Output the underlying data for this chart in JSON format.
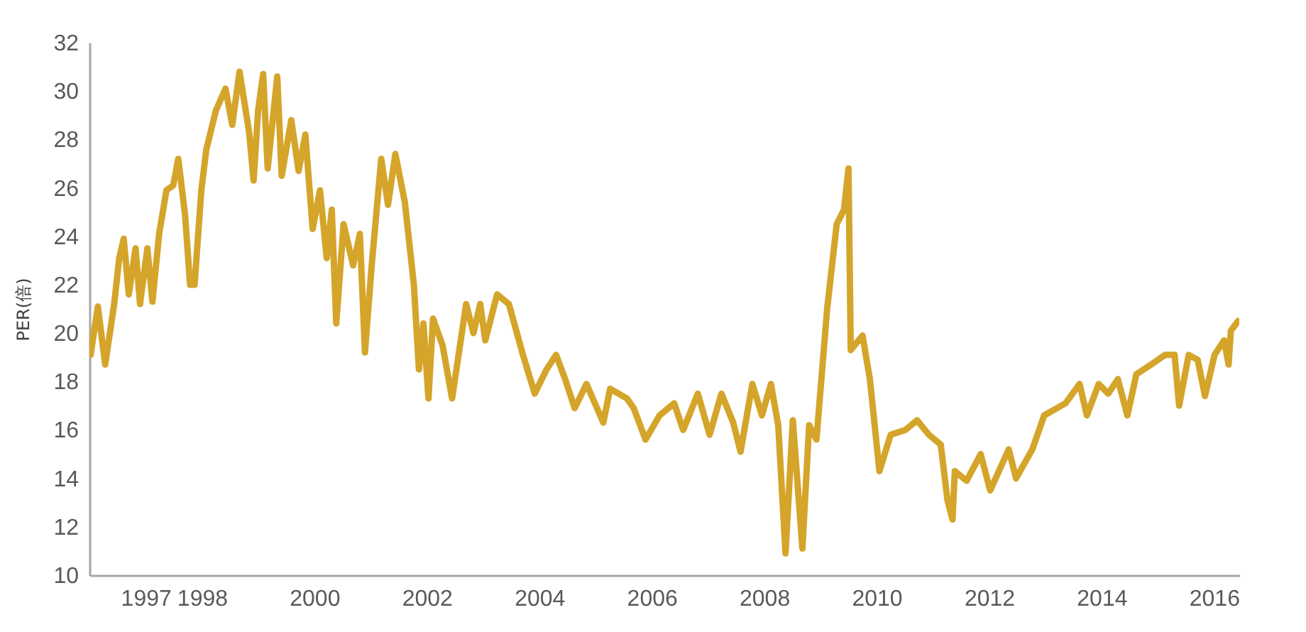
{
  "chart_data": {
    "type": "line",
    "ylabel": "PER(倍)",
    "xlim": [
      1996,
      2016.45
    ],
    "xticks": [
      1997,
      1998,
      2000,
      2002,
      2004,
      2006,
      2008,
      2010,
      2012,
      2014,
      2016
    ],
    "ylim": [
      10,
      32
    ],
    "yticks": [
      10,
      12,
      14,
      16,
      18,
      20,
      22,
      24,
      26,
      28,
      30,
      32
    ],
    "grid": false,
    "marker": "none",
    "line_style": "solid",
    "series": [
      {
        "color": "#d4a52a",
        "x": [
          1996.02,
          1996.15,
          1996.28,
          1996.44,
          1996.53,
          1996.61,
          1996.7,
          1996.82,
          1996.9,
          1997.03,
          1997.12,
          1997.24,
          1997.37,
          1997.49,
          1997.58,
          1997.7,
          1997.79,
          1997.87,
          1997.99,
          1998.08,
          1998.25,
          1998.42,
          1998.54,
          1998.67,
          1998.84,
          1998.92,
          1999.0,
          1999.09,
          1999.17,
          1999.34,
          1999.42,
          1999.59,
          1999.72,
          1999.84,
          1999.97,
          2000.1,
          2000.22,
          2000.31,
          2000.39,
          2000.52,
          2000.69,
          2000.81,
          2000.9,
          2001.02,
          2001.19,
          2001.31,
          2001.44,
          2001.61,
          2001.77,
          2001.86,
          2001.94,
          2002.03,
          2002.11,
          2002.28,
          2002.45,
          2002.7,
          2002.83,
          2002.95,
          2003.04,
          2003.25,
          2003.46,
          2003.71,
          2003.92,
          2004.13,
          2004.3,
          2004.46,
          2004.63,
          2004.84,
          2005.14,
          2005.26,
          2005.56,
          2005.68,
          2005.89,
          2006.14,
          2006.4,
          2006.56,
          2006.82,
          2007.03,
          2007.24,
          2007.45,
          2007.58,
          2007.79,
          2007.96,
          2008.12,
          2008.25,
          2008.38,
          2008.51,
          2008.68,
          2008.8,
          2008.93,
          2009.12,
          2009.29,
          2009.42,
          2009.5,
          2009.54,
          2009.75,
          2009.88,
          2010.05,
          2010.25,
          2010.51,
          2010.72,
          2010.93,
          2011.14,
          2011.26,
          2011.35,
          2011.39,
          2011.6,
          2011.85,
          2012.02,
          2012.35,
          2012.48,
          2012.77,
          2012.98,
          2013.36,
          2013.61,
          2013.74,
          2013.95,
          2014.12,
          2014.29,
          2014.46,
          2014.62,
          2014.88,
          2015.13,
          2015.3,
          2015.38,
          2015.55,
          2015.71,
          2015.84,
          2016.01,
          2016.18,
          2016.26,
          2016.3,
          2016.43
        ],
        "values": [
          19.1,
          21.1,
          18.7,
          21.2,
          23.1,
          23.9,
          21.6,
          23.5,
          21.2,
          23.5,
          21.3,
          24.1,
          25.9,
          26.1,
          27.2,
          24.9,
          22.0,
          22.0,
          25.9,
          27.6,
          29.2,
          30.1,
          28.6,
          30.8,
          28.3,
          26.3,
          29.2,
          30.7,
          26.8,
          30.6,
          26.5,
          28.8,
          26.7,
          28.2,
          24.3,
          25.9,
          23.1,
          25.1,
          20.4,
          24.5,
          22.8,
          24.1,
          19.2,
          22.8,
          27.2,
          25.3,
          27.4,
          25.4,
          22.0,
          18.5,
          20.4,
          17.3,
          20.6,
          19.5,
          17.3,
          21.2,
          20.0,
          21.2,
          19.7,
          21.6,
          21.2,
          19.1,
          17.5,
          18.5,
          19.1,
          18.1,
          16.9,
          17.9,
          16.3,
          17.7,
          17.3,
          16.9,
          15.6,
          16.6,
          17.1,
          16.0,
          17.5,
          15.8,
          17.5,
          16.3,
          15.1,
          17.9,
          16.6,
          17.9,
          16.2,
          10.9,
          16.4,
          11.1,
          16.2,
          15.6,
          21.0,
          24.5,
          25.1,
          26.8,
          19.3,
          19.9,
          18.1,
          14.3,
          15.8,
          16.0,
          16.4,
          15.8,
          15.4,
          13.1,
          12.3,
          14.3,
          13.9,
          15.0,
          13.5,
          15.2,
          14.0,
          15.2,
          16.6,
          17.1,
          17.9,
          16.6,
          17.9,
          17.5,
          18.1,
          16.6,
          18.3,
          18.7,
          19.1,
          19.1,
          17.0,
          19.1,
          18.9,
          17.4,
          19.1,
          19.7,
          18.7,
          20.1,
          20.5
        ]
      }
    ]
  }
}
